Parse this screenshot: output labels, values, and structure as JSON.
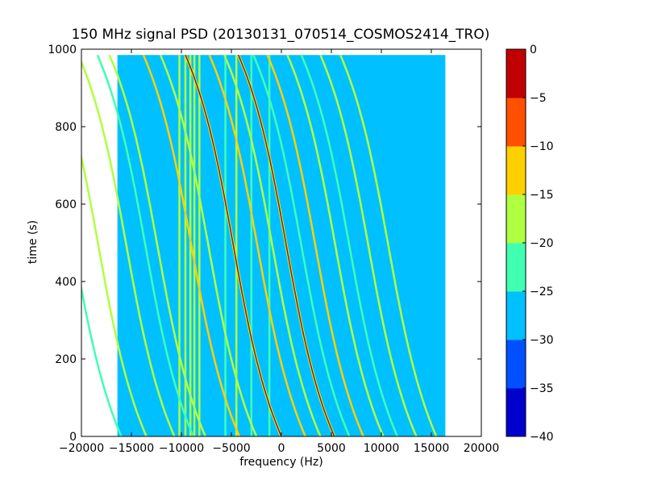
{
  "chart_data": {
    "type": "heatmap",
    "title": "150 MHz signal PSD (20130131_070514_COSMOS2414_TRO)",
    "xlabel": "frequency (Hz)",
    "ylabel": "time (s)",
    "xlim": [
      -20000,
      20000
    ],
    "ylim": [
      0,
      1000
    ],
    "xticks": [
      -20000,
      -15000,
      -10000,
      -5000,
      0,
      5000,
      10000,
      15000,
      20000
    ],
    "yticks": [
      0,
      200,
      400,
      600,
      800,
      1000
    ],
    "data_extent": {
      "x": [
        -16400,
        16400
      ],
      "y": [
        0,
        985
      ]
    },
    "background_level": -28,
    "colorbar": {
      "levels": [
        -40,
        -35,
        -30,
        -25,
        -20,
        -15,
        -10,
        -5,
        0
      ],
      "tick_labels": [
        "−40",
        "−35",
        "−30",
        "−25",
        "−20",
        "−15",
        "−10",
        "−5",
        "0"
      ],
      "colors": [
        "#0000cc",
        "#0050ff",
        "#00c0ff",
        "#40ffb0",
        "#b0ff40",
        "#ffd000",
        "#ff5000",
        "#c00000"
      ]
    },
    "vertical_lines": [
      {
        "x": -10200,
        "level": -17
      },
      {
        "x": -9600,
        "level": -18
      },
      {
        "x": -9100,
        "level": -17
      },
      {
        "x": -8700,
        "level": -18
      },
      {
        "x": -8200,
        "level": -17
      },
      {
        "x": -5600,
        "level": -22
      },
      {
        "x": -4500,
        "level": -18
      },
      {
        "x": -3000,
        "level": -22
      },
      {
        "x": -1200,
        "level": -23
      }
    ],
    "tracks": [
      {
        "end_x": 0,
        "level": -3
      },
      {
        "end_x": 5300,
        "level": -3
      },
      {
        "end_x": -4200,
        "level": -12
      },
      {
        "end_x": 2400,
        "level": -12
      },
      {
        "end_x": 8200,
        "level": -12
      },
      {
        "end_x": -7600,
        "level": -17
      },
      {
        "end_x": -2500,
        "level": -17
      },
      {
        "end_x": 3900,
        "level": -17
      },
      {
        "end_x": 10200,
        "level": -17
      },
      {
        "end_x": -10700,
        "level": -17
      },
      {
        "end_x": 13500,
        "level": -18
      },
      {
        "end_x": 15500,
        "level": -20
      },
      {
        "end_x": -13500,
        "level": -20
      },
      {
        "end_x": 6800,
        "level": -22
      },
      {
        "end_x": -16000,
        "level": -22
      },
      {
        "end_x": 11600,
        "level": -23
      },
      {
        "end_x": -8800,
        "level": -23
      }
    ]
  }
}
